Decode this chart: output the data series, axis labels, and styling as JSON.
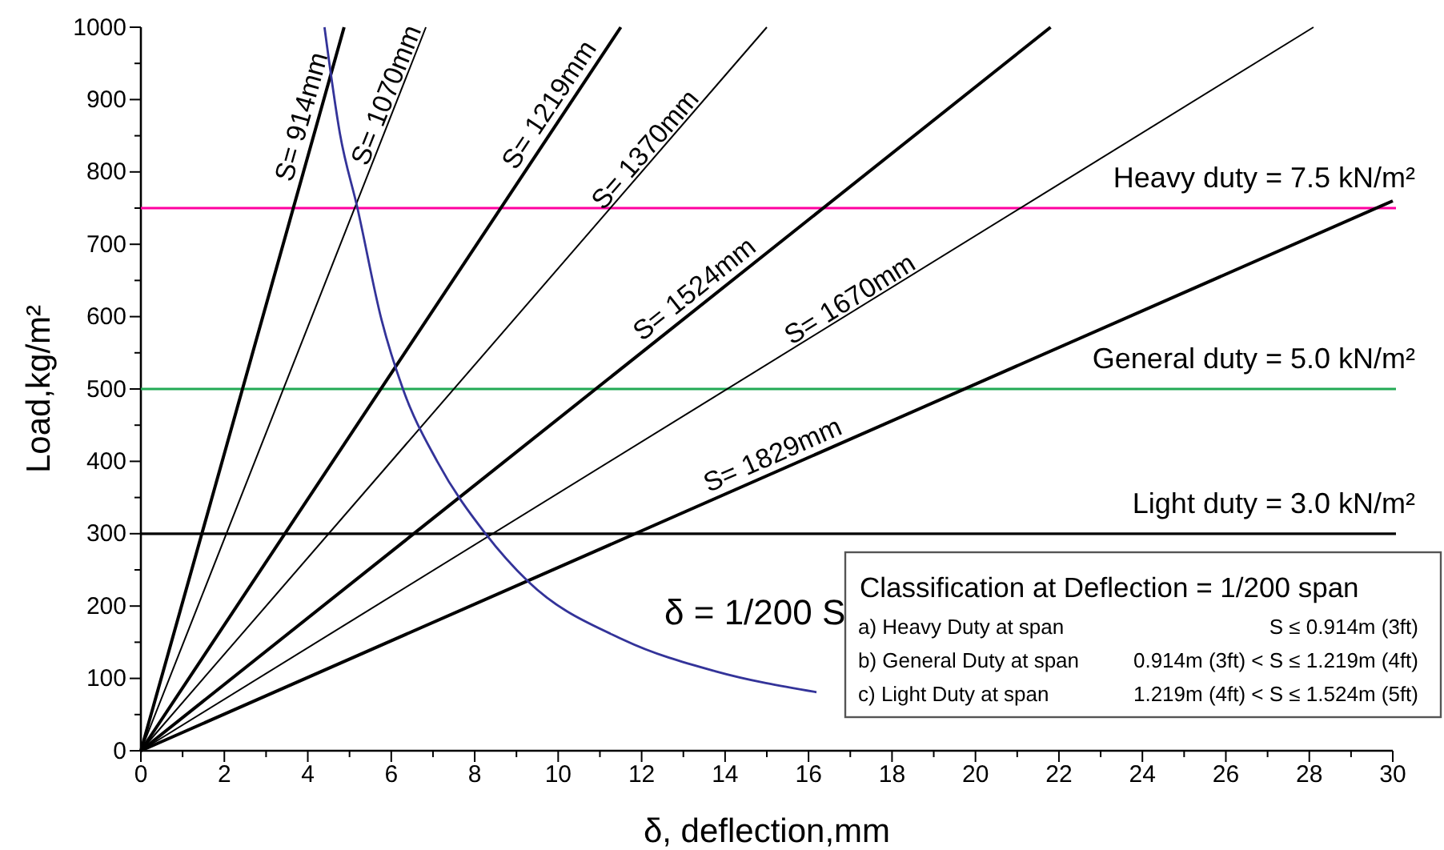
{
  "chart_data": {
    "type": "line",
    "xlabel": "δ, deflection,mm",
    "ylabel": "Load,kg/m²",
    "xlim": [
      0,
      30
    ],
    "ylim": [
      0,
      1000
    ],
    "xticks": [
      0,
      {
        "value": 1,
        "label": null
      },
      2,
      {
        "value": 3,
        "label": null
      },
      4,
      {
        "value": 5,
        "label": null
      },
      6,
      {
        "value": 7,
        "label": null
      },
      8,
      {
        "value": 9,
        "label": null
      },
      10,
      {
        "value": 11,
        "label": null
      },
      12,
      {
        "value": 13,
        "label": null
      },
      14,
      {
        "value": 15,
        "label": null
      },
      16,
      {
        "value": 17,
        "label": null
      },
      18,
      {
        "value": 19,
        "label": null
      },
      20,
      {
        "value": 21,
        "label": null
      },
      22,
      {
        "value": 23,
        "label": null
      },
      24,
      {
        "value": 25,
        "label": null
      },
      26,
      {
        "value": 27,
        "label": null
      },
      28,
      {
        "value": 29,
        "label": null
      },
      30
    ],
    "yticks": [
      0,
      {
        "value": 50,
        "label": null
      },
      100,
      {
        "value": 150,
        "label": null
      },
      200,
      {
        "value": 250,
        "label": null
      },
      300,
      {
        "value": 350,
        "label": null
      },
      400,
      {
        "value": 450,
        "label": null
      },
      500,
      {
        "value": 550,
        "label": null
      },
      600,
      {
        "value": 650,
        "label": null
      },
      700,
      {
        "value": 750,
        "label": null
      },
      800,
      {
        "value": 850,
        "label": null
      },
      900,
      {
        "value": 950,
        "label": null
      },
      1000
    ],
    "grid": false,
    "marker": "none",
    "line_style": "solid",
    "series": [
      {
        "name": "S= 914mm",
        "color": "#000000",
        "x": [
          0,
          4.87
        ],
        "values": [
          0,
          1000
        ]
      },
      {
        "name": "S= 1070mm",
        "color": "#000000",
        "x": [
          0,
          6.83
        ],
        "values": [
          0,
          1000
        ]
      },
      {
        "name": "S= 1219mm",
        "color": "#000000",
        "x": [
          0,
          11.5
        ],
        "values": [
          0,
          1000
        ]
      },
      {
        "name": "S= 1370mm",
        "color": "#000000",
        "x": [
          0,
          15.0
        ],
        "values": [
          0,
          1000
        ]
      },
      {
        "name": "S= 1524mm",
        "color": "#000000",
        "x": [
          0,
          21.8
        ],
        "values": [
          0,
          1000
        ]
      },
      {
        "name": "S= 1670mm",
        "color": "#000000",
        "x": [
          0,
          28.1
        ],
        "values": [
          0,
          1000
        ]
      },
      {
        "name": "S= 1829mm",
        "color": "#000000",
        "x": [
          0,
          30
        ],
        "values": [
          0,
          760
        ]
      },
      {
        "color": "#333399",
        "x": [
          4.4,
          4.77,
          5.19,
          5.77,
          6.28,
          7.1,
          8.26,
          9.28,
          11.58,
          13.76,
          16.19
        ],
        "values": [
          1000,
          853,
          750,
          595,
          500,
          400,
          300,
          234,
          153,
          110,
          81
        ]
      }
    ],
    "ref_lines": [
      {
        "axis": "y",
        "value": 750,
        "color": "#ff00a0"
      },
      {
        "axis": "y",
        "value": 500,
        "color": "#22aa55"
      },
      {
        "axis": "y",
        "value": 300,
        "color": "#000000"
      }
    ],
    "annotations": [
      {
        "text": "Heavy duty = 7.5 kN/m²",
        "y": 750
      },
      {
        "text": "General duty = 5.0 kN/m²",
        "y": 500
      },
      {
        "text": "Light duty = 3.0 kN/m²",
        "y": 300
      },
      "δ = 1/200 S",
      "Classification at Deflection = 1/200 span",
      "a) Heavy Duty at span",
      "S ≤ 0.914m (3ft)",
      "b) General Duty at span",
      "0.914m (3ft) < S ≤ 1.219m (4ft)",
      "c) Light Duty at span",
      "1.219m (4ft) < S ≤ 1.524m (5ft)"
    ]
  }
}
